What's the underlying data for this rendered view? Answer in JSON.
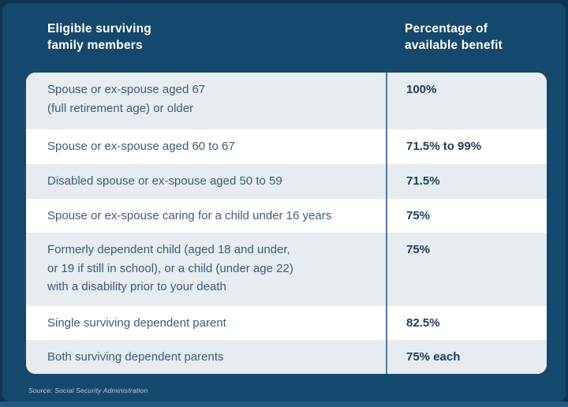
{
  "colors": {
    "background_outer": "#0c3454",
    "panel_navy": "#15486d",
    "bottom_strip": "#215a80",
    "table_surface": "#ffffff",
    "row_tint": "#e7ecf1",
    "divider": "#53779e",
    "header_text": "#ffffff",
    "member_text": "#3e5c7b",
    "benefit_text": "#1c3d5f",
    "source_text": "#bccddc"
  },
  "header": {
    "col1": "Eligible surviving\nfamily members",
    "col2": "Percentage of\navailable benefit"
  },
  "table": {
    "rows": [
      {
        "member": "Spouse or ex-spouse aged 67\n(full retirement age) or older",
        "benefit": "100%"
      },
      {
        "member": "Spouse or ex-spouse aged 60 to 67",
        "benefit": "71.5% to 99%"
      },
      {
        "member": "Disabled spouse or ex-spouse aged 50 to 59",
        "benefit": "71.5%"
      },
      {
        "member": "Spouse or ex-spouse caring for a child under 16 years",
        "benefit": "75%"
      },
      {
        "member": "Formerly dependent child (aged 18 and under,\nor 19 if still in school), or a child (under age 22)\nwith a disability prior to your death",
        "benefit": "75%"
      },
      {
        "member": "Single surviving dependent parent",
        "benefit": "82.5%"
      },
      {
        "member": "Both surviving dependent parents",
        "benefit": "75% each"
      }
    ]
  },
  "footer": {
    "source": "Source: Social Security Administration"
  },
  "chart_data": {
    "type": "table",
    "title": "Survivor benefits by eligible family member",
    "columns": [
      "Eligible surviving family members",
      "Percentage of available benefit"
    ],
    "rows": [
      [
        "Spouse or ex-spouse aged 67 (full retirement age) or older",
        "100%"
      ],
      [
        "Spouse or ex-spouse aged 60 to 67",
        "71.5% to 99%"
      ],
      [
        "Disabled spouse or ex-spouse aged 50 to 59",
        "71.5%"
      ],
      [
        "Spouse or ex-spouse caring for a child under 16 years",
        "75%"
      ],
      [
        "Formerly dependent child (aged 18 and under, or 19 if still in school), or a child (under age 22) with a disability prior to your death",
        "75%"
      ],
      [
        "Single surviving dependent parent",
        "82.5%"
      ],
      [
        "Both surviving dependent parents",
        "75% each"
      ]
    ],
    "source": "Source: Social Security Administration",
    "legend_position": "none",
    "grid": false
  }
}
